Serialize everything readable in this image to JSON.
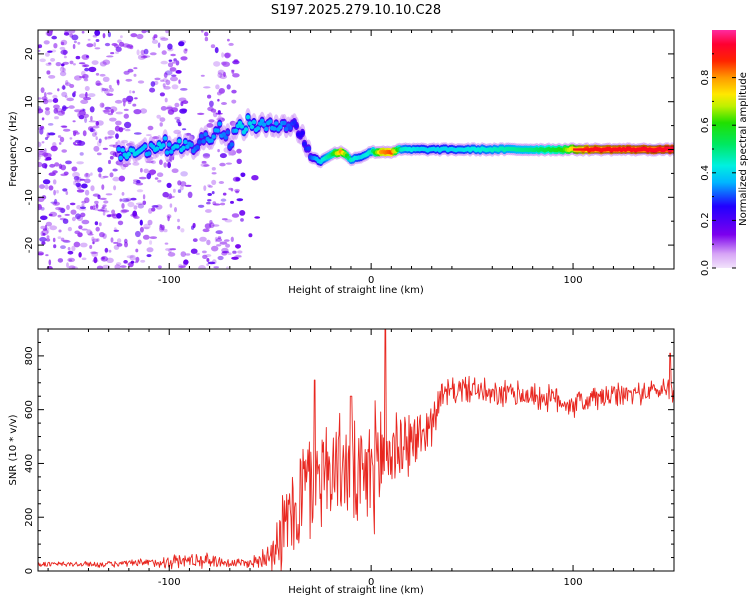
{
  "title": "S197.2025.279.10.10.C28",
  "colors": {
    "series": "#e8261f",
    "frame": "#000000",
    "background": "#ffffff"
  },
  "chart_data": [
    {
      "type": "heatmap",
      "title": "S197.2025.279.10.10.C28",
      "xlabel": "Height of straight line (km)",
      "ylabel": "Frequency (Hz)",
      "xlim": [
        -165,
        150
      ],
      "ylim": [
        -25,
        25
      ],
      "x_ticks": [
        -100,
        0,
        100
      ],
      "x_tick_labels": [
        "-100",
        "0",
        "100"
      ],
      "y_ticks": [
        -20,
        -10,
        0,
        10,
        20
      ],
      "y_tick_labels": [
        "-20",
        "-10",
        "0",
        "10",
        "20"
      ],
      "colorbar": {
        "label": "Normalized spectral amplitude",
        "range": [
          0.0,
          1.0
        ],
        "ticks": [
          0.0,
          0.2,
          0.4,
          0.6,
          0.8
        ],
        "tick_labels": [
          "0.0",
          "0.2",
          "0.4",
          "0.6",
          "0.8"
        ],
        "colormap": "rainbow (light violet → violet → blue → cyan → green → yellow → orange → red → magenta)"
      },
      "ridge": [
        {
          "x": -125,
          "y": -1.0,
          "amp": 0.35
        },
        {
          "x": -120,
          "y": -0.5,
          "amp": 0.4
        },
        {
          "x": -115,
          "y": 0.5,
          "amp": 0.4
        },
        {
          "x": -110,
          "y": 0.0,
          "amp": 0.35
        },
        {
          "x": -105,
          "y": 1.5,
          "amp": 0.4
        },
        {
          "x": -100,
          "y": 0.5,
          "amp": 0.35
        },
        {
          "x": -95,
          "y": 1.5,
          "amp": 0.4
        },
        {
          "x": -90,
          "y": 0.0,
          "amp": 0.35
        },
        {
          "x": -85,
          "y": 1.5,
          "amp": 0.3
        },
        {
          "x": -80,
          "y": 3.0,
          "amp": 0.35
        },
        {
          "x": -75,
          "y": 4.5,
          "amp": 0.35
        },
        {
          "x": -70,
          "y": 2.0,
          "amp": 0.3
        },
        {
          "x": -65,
          "y": 4.5,
          "amp": 0.4
        },
        {
          "x": -60,
          "y": 5.5,
          "amp": 0.4
        },
        {
          "x": -55,
          "y": 5.0,
          "amp": 0.35
        },
        {
          "x": -50,
          "y": 4.5,
          "amp": 0.35
        },
        {
          "x": -45,
          "y": 6.0,
          "amp": 0.35
        },
        {
          "x": -40,
          "y": 5.0,
          "amp": 0.3
        },
        {
          "x": -35,
          "y": 4.0,
          "amp": 0.25
        },
        {
          "x": -30,
          "y": -1.5,
          "amp": 0.3
        },
        {
          "x": -25,
          "y": -2.5,
          "amp": 0.4
        },
        {
          "x": -20,
          "y": -1.0,
          "amp": 0.5
        },
        {
          "x": -15,
          "y": -0.5,
          "amp": 0.8
        },
        {
          "x": -10,
          "y": -2.0,
          "amp": 0.45
        },
        {
          "x": -5,
          "y": -1.5,
          "amp": 0.4
        },
        {
          "x": 0,
          "y": -0.5,
          "amp": 0.45
        },
        {
          "x": 5,
          "y": -0.5,
          "amp": 0.8
        },
        {
          "x": 10,
          "y": -0.5,
          "amp": 0.85
        },
        {
          "x": 15,
          "y": 0.0,
          "amp": 0.45
        },
        {
          "x": 25,
          "y": 0.0,
          "amp": 0.4
        },
        {
          "x": 40,
          "y": 0.0,
          "amp": 0.4
        },
        {
          "x": 60,
          "y": 0.0,
          "amp": 0.45
        },
        {
          "x": 80,
          "y": 0.0,
          "amp": 0.5
        },
        {
          "x": 95,
          "y": 0.0,
          "amp": 0.6
        },
        {
          "x": 100,
          "y": 0.0,
          "amp": 0.75
        },
        {
          "x": 110,
          "y": 0.0,
          "amp": 0.9
        },
        {
          "x": 150,
          "y": 0.0,
          "amp": 0.95
        }
      ],
      "noise_region_x": [
        -165,
        -65
      ],
      "noise_level": 0.1
    },
    {
      "type": "line",
      "title": "",
      "xlabel": "Height of straight line (km)",
      "ylabel": "SNR (10 * v/v)",
      "xlim": [
        -165,
        150
      ],
      "ylim": [
        0,
        900
      ],
      "x_ticks": [
        -100,
        0,
        100
      ],
      "x_tick_labels": [
        "-100",
        "0",
        "100"
      ],
      "y_ticks": [
        0,
        200,
        400,
        600,
        800
      ],
      "y_tick_labels": [
        "0",
        "200",
        "400",
        "600",
        "800"
      ],
      "series": [
        {
          "name": "SNR",
          "color": "#e8261f",
          "x": [
            -165,
            -150,
            -130,
            -110,
            -100,
            -90,
            -80,
            -70,
            -60,
            -55,
            -50,
            -45,
            -40,
            -35,
            -30,
            -25,
            -20,
            -15,
            -10,
            -5,
            0,
            5,
            10,
            15,
            20,
            25,
            30,
            35,
            40,
            50,
            60,
            70,
            80,
            90,
            100,
            110,
            120,
            130,
            140,
            150
          ],
          "values": [
            25,
            25,
            25,
            30,
            35,
            40,
            40,
            30,
            30,
            40,
            80,
            120,
            200,
            280,
            330,
            380,
            380,
            400,
            360,
            300,
            380,
            420,
            450,
            470,
            480,
            500,
            560,
            650,
            670,
            680,
            650,
            660,
            650,
            640,
            620,
            640,
            650,
            660,
            670,
            680
          ],
          "noise_amplitude": [
            12,
            12,
            12,
            18,
            30,
            30,
            30,
            20,
            20,
            40,
            80,
            150,
            200,
            260,
            250,
            230,
            210,
            200,
            220,
            220,
            250,
            250,
            200,
            160,
            130,
            110,
            90,
            60,
            55,
            55,
            55,
            55,
            55,
            55,
            55,
            55,
            50,
            45,
            45,
            55
          ],
          "peaks": [
            {
              "x": 7,
              "y": 900
            },
            {
              "x": -28,
              "y": 710
            },
            {
              "x": -10,
              "y": 650
            },
            {
              "x": 148,
              "y": 810
            }
          ]
        }
      ]
    }
  ]
}
